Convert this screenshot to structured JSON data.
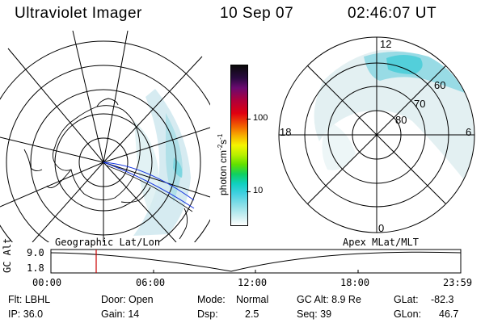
{
  "header": {
    "instrument": "Ultraviolet Imager",
    "date": "10 Sep 07",
    "time": "02:46:07 UT"
  },
  "colorbar": {
    "units": "photon cm",
    "units_exp1": "-2",
    "units_mid": "s",
    "units_exp2": "-1",
    "tick_100": "100",
    "tick_10": "10"
  },
  "polar_plot": {
    "label_top": "12",
    "label_left": "18",
    "label_right": "6",
    "label_bottom": "0",
    "ring_60": "60",
    "ring_70": "70",
    "ring_80": "80"
  },
  "left_map": {
    "projection_label": "Geographic Lat/Lon"
  },
  "right_map": {
    "projection_label": "Apex MLat/MLT"
  },
  "timeline": {
    "axis_label": "GC Alt",
    "y_top": "9.0",
    "y_bottom": "1.8",
    "x_ticks": [
      "00:00",
      "06:00",
      "12:00",
      "18:00",
      "23:59"
    ],
    "marker_color": "#cc0000"
  },
  "info": {
    "filter": "Flt: LBHL",
    "ip": "IP: 36.0",
    "door": "Door: Open",
    "gain": "Gain: 14",
    "mode_label": "Mode:",
    "mode_value": "Normal",
    "dsp_label": "Dsp:",
    "dsp_value": "2.5",
    "gc_alt": "GC Alt: 8.9 Re",
    "seq": "Seq: 39",
    "glat_label": "GLat:",
    "glat_value": "-82.3",
    "glon_label": "GLon:",
    "glon_value": "46.7"
  }
}
